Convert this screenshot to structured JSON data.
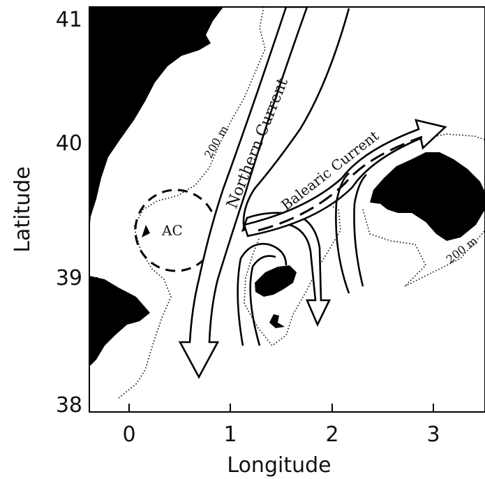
{
  "map": {
    "axes": {
      "xlabel": "Longitude",
      "ylabel": "Latitude",
      "xticks": [
        "0",
        "1",
        "2",
        "3"
      ],
      "yticks": [
        "41",
        "40",
        "39",
        "38"
      ]
    },
    "labels": {
      "northern_current": "Northern Current",
      "balearic_current": "Balearic Current",
      "ac": "AC",
      "isobath_west": "200 m",
      "isobath_east": "200 m"
    },
    "colors": {
      "land": "#000000",
      "sea": "#ffffff",
      "current": "#000000"
    }
  }
}
